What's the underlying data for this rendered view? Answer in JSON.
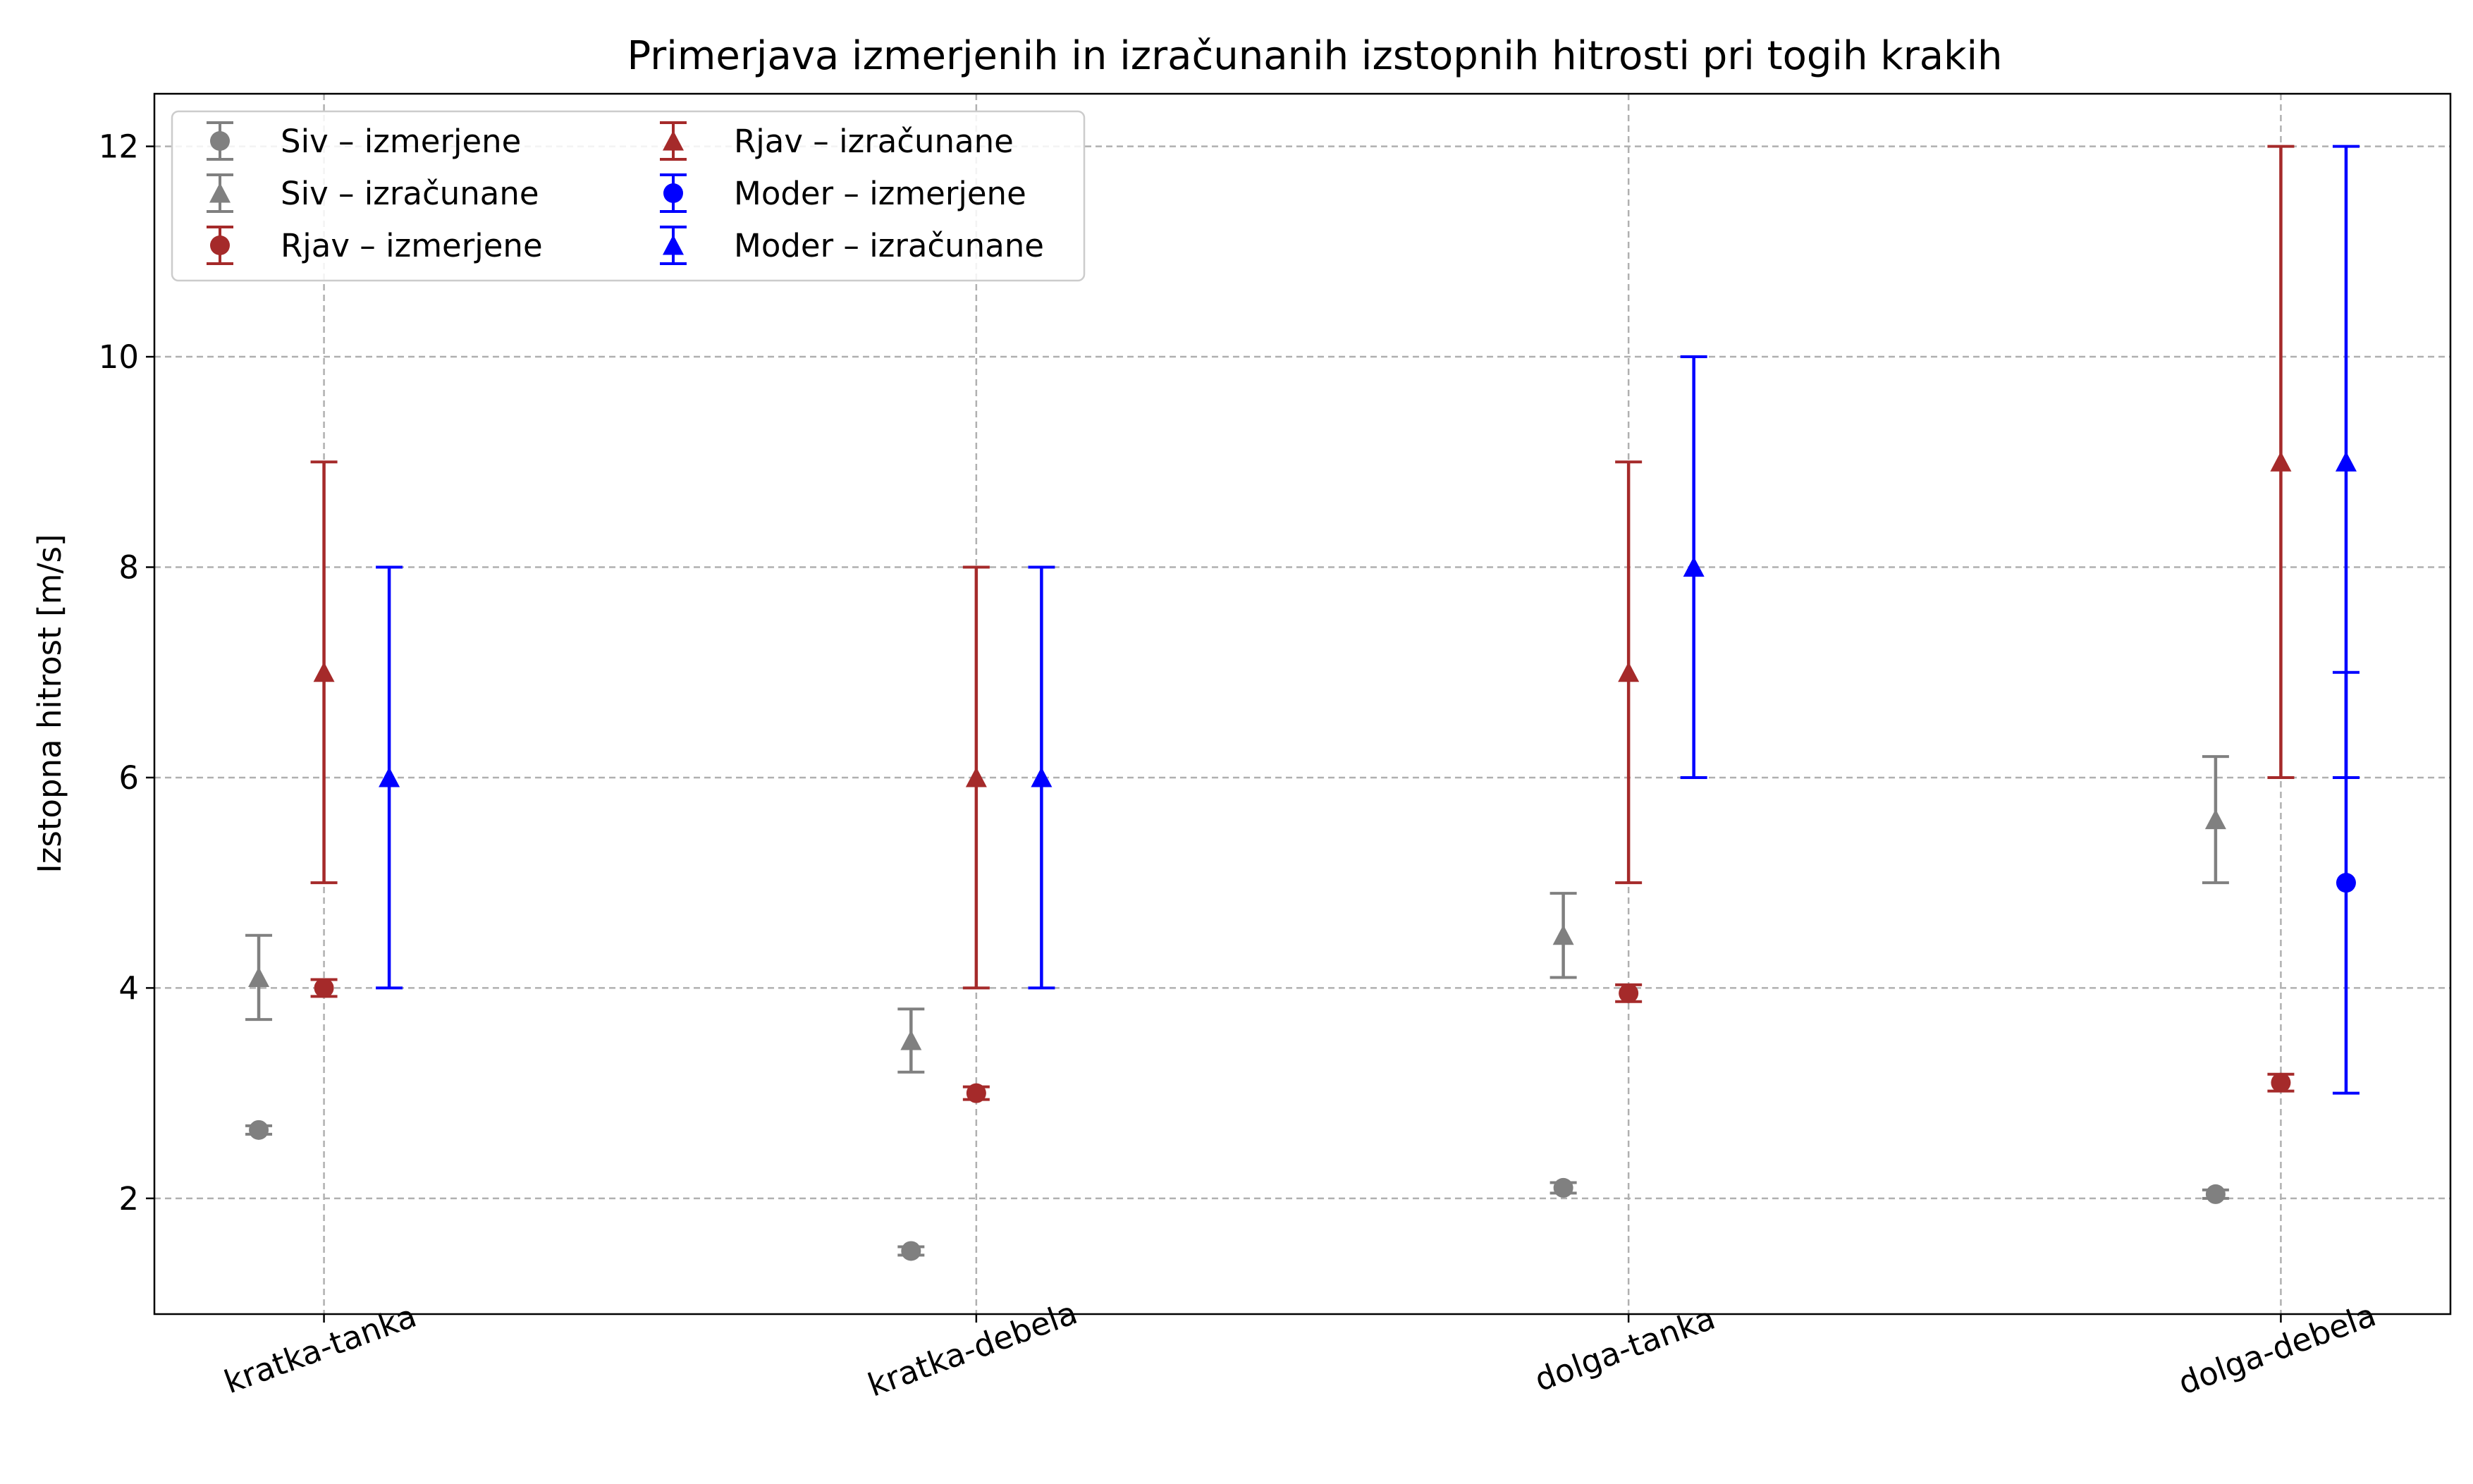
{
  "chart_data": {
    "type": "scatter",
    "title": "Primerjava izmerjenih in izračunanih izstopnih hitrosti pri togih krakih",
    "xlabel": "",
    "ylabel": "Izstopna hitrost [m/s]",
    "categories": [
      "kratka-tanka",
      "kratka-debela",
      "dolga-tanka",
      "dolga-debela"
    ],
    "ylim": [
      0.9,
      12.5
    ],
    "yticks": [
      "2",
      "4",
      "6",
      "8",
      "10",
      "12"
    ],
    "grid": true,
    "legend_position": "top-left",
    "series": [
      {
        "name": "Siv – izmerjene",
        "color": "#808080",
        "marker": "circle",
        "offset": -0.1,
        "values": [
          2.65,
          1.5,
          2.1,
          2.04
        ],
        "err_low": [
          0.04,
          0.04,
          0.05,
          0.04
        ],
        "err_high": [
          0.04,
          0.04,
          0.05,
          0.04
        ]
      },
      {
        "name": "Siv – izračunane",
        "color": "#808080",
        "marker": "triangle",
        "offset": -0.1,
        "values": [
          4.1,
          3.5,
          4.5,
          5.6
        ],
        "err_low": [
          0.4,
          0.3,
          0.4,
          0.6
        ],
        "err_high": [
          0.4,
          0.3,
          0.4,
          0.6
        ]
      },
      {
        "name": "Rjav – izmerjene",
        "color": "#a52a2a",
        "marker": "circle",
        "offset": 0.0,
        "values": [
          4.0,
          3.0,
          3.95,
          3.1
        ],
        "err_low": [
          0.08,
          0.06,
          0.08,
          0.08
        ],
        "err_high": [
          0.08,
          0.06,
          0.08,
          0.08
        ]
      },
      {
        "name": "Rjav – izračunane",
        "color": "#a52a2a",
        "marker": "triangle",
        "offset": 0.0,
        "values": [
          7,
          6,
          7,
          9
        ],
        "err_low": [
          2,
          2,
          2,
          3
        ],
        "err_high": [
          2,
          2,
          2,
          3
        ]
      },
      {
        "name": "Moder – izmerjene",
        "color": "#0000ff",
        "marker": "circle",
        "offset": 0.1,
        "values": [
          null,
          null,
          null,
          5
        ],
        "err_low": [
          0,
          0,
          0,
          2
        ],
        "err_high": [
          0,
          0,
          0,
          2
        ]
      },
      {
        "name": "Moder – izračunane",
        "color": "#0000ff",
        "marker": "triangle",
        "offset": 0.1,
        "values": [
          6,
          6,
          8,
          9
        ],
        "err_low": [
          2,
          2,
          2,
          3
        ],
        "err_high": [
          2,
          2,
          2,
          3
        ]
      }
    ]
  }
}
